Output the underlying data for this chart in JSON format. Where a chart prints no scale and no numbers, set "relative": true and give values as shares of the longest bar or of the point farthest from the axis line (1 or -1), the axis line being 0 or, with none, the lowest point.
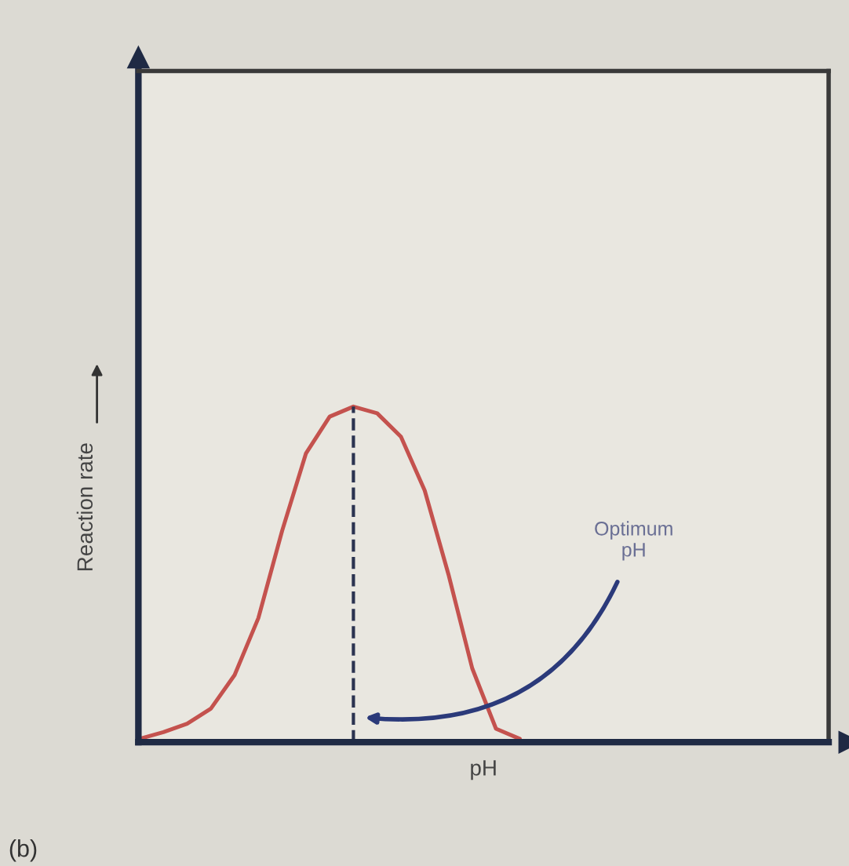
{
  "chart_data": {
    "type": "line",
    "relative": true,
    "xlabel": "pH",
    "ylabel": "Reaction rate",
    "categories": [
      null,
      null,
      null,
      null,
      null,
      null,
      null,
      null,
      null,
      null,
      null,
      null,
      null,
      null,
      null,
      null,
      null
    ],
    "series": [
      {
        "color": "#c4524e",
        "values": [
          0.01,
          0.03,
          0.055,
          0.1,
          0.2,
          0.37,
          0.63,
          0.86,
          0.97,
          1.0,
          0.98,
          0.91,
          0.75,
          0.5,
          0.22,
          0.04,
          0.01
        ]
      }
    ],
    "annotations": [
      "Optimum\npH",
      "(b)"
    ],
    "legend": false
  }
}
